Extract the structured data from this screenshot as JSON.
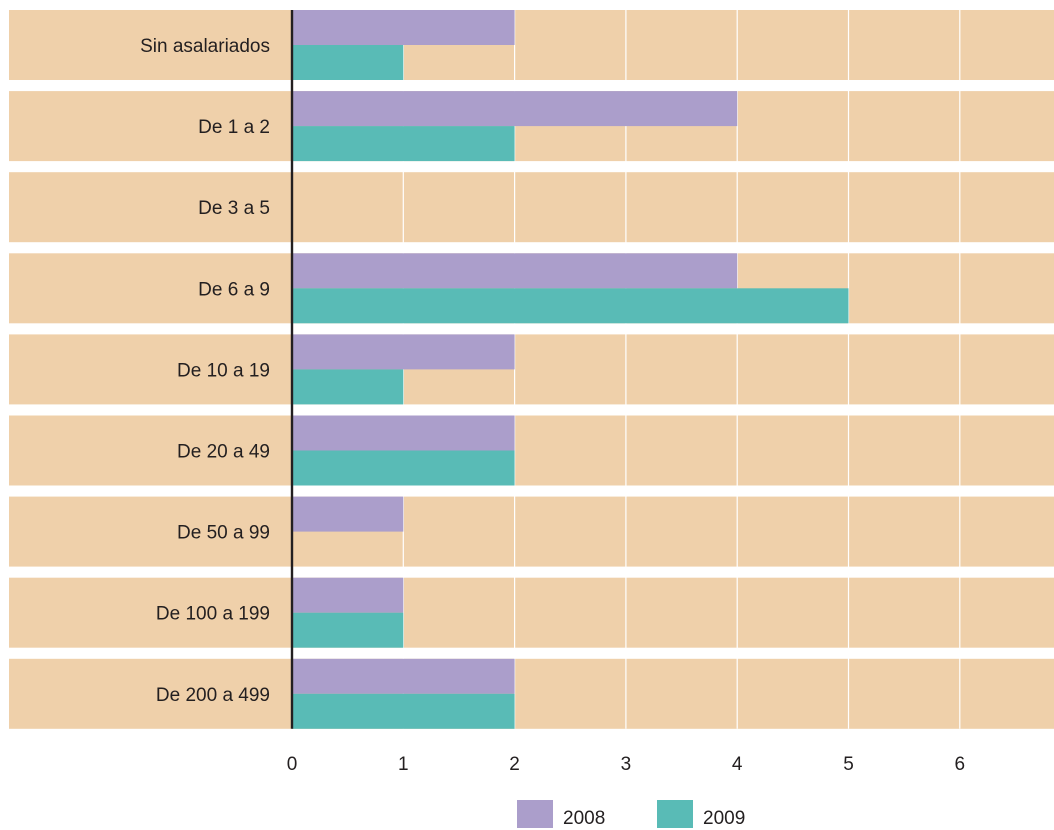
{
  "chart_data": {
    "type": "bar",
    "orientation": "horizontal",
    "categories": [
      "Sin asalariados",
      "De 1 a 2",
      "De 3 a 5",
      "De 6 a 9",
      "De 10 a 19",
      "De 20 a 49",
      "De 50 a 99",
      "De 100 a 199",
      "De 200 a 499"
    ],
    "series": [
      {
        "name": "2008",
        "color": "#ab9ecb",
        "values": [
          2,
          4,
          0,
          4,
          2,
          2,
          1,
          1,
          2
        ]
      },
      {
        "name": "2009",
        "color": "#59bbb6",
        "values": [
          1,
          2,
          0,
          5,
          1,
          2,
          0,
          1,
          2
        ]
      }
    ],
    "xticks": [
      0,
      1,
      2,
      3,
      4,
      5,
      6
    ],
    "xlim": [
      0,
      6.7
    ],
    "grid": "vertical",
    "band_color": "#efd0aa",
    "legend_placement": "bottom"
  }
}
